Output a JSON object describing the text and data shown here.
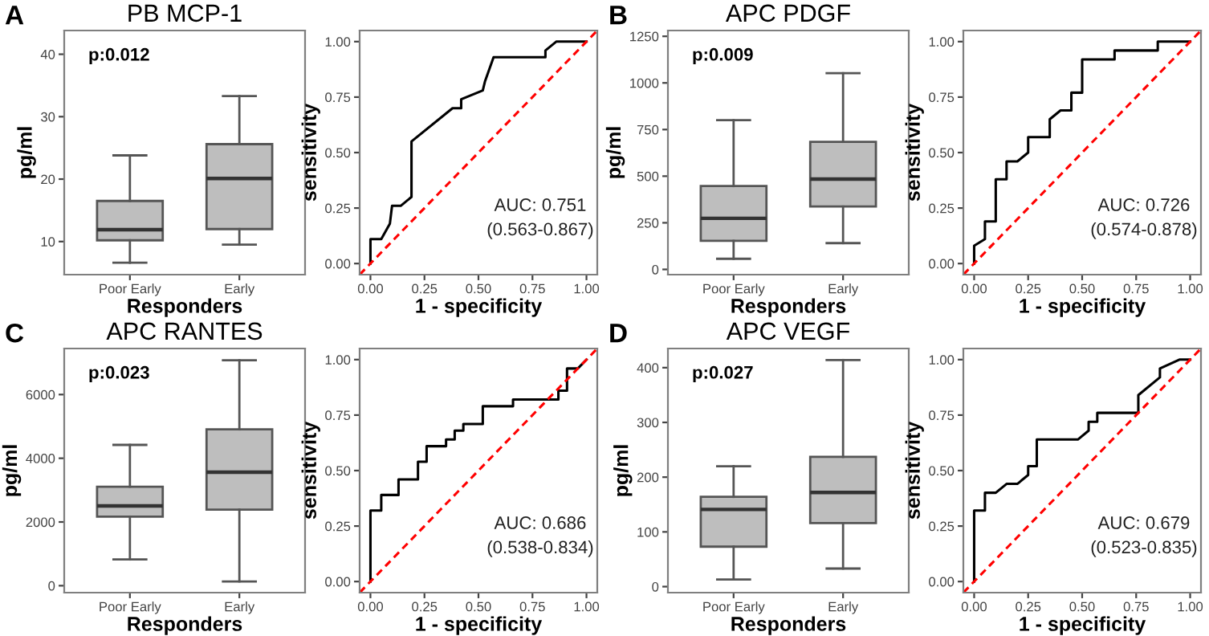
{
  "chart_data": [
    {
      "type": "box",
      "title": "PB MCP-1",
      "xlabel": "Responders",
      "ylabel": "pg/ml",
      "annotations": [
        "A",
        "p:0.012"
      ],
      "categories": [
        "Poor Early",
        "Early"
      ],
      "color": "#bebebe",
      "ylim": [
        4.7,
        43.8
      ],
      "yticks": [
        10,
        20,
        30,
        40
      ],
      "grid": false,
      "boxes": [
        {
          "low": 6.6,
          "q1": 10.2,
          "median": 11.9,
          "q3": 16.5,
          "high": 23.8
        },
        {
          "low": 9.5,
          "q1": 12.0,
          "median": 20.1,
          "q3": 25.6,
          "high": 33.3
        }
      ]
    },
    {
      "type": "line",
      "xlabel": "1 - specificity",
      "ylabel": "sensitivity",
      "annotations": [
        "AUC: 0.751",
        "(0.563-0.867)"
      ],
      "xlim": [
        -0.05,
        1.05
      ],
      "ylim": [
        -0.05,
        1.05
      ],
      "xticks": [
        {
          "value": 0,
          "label": "0.00"
        },
        {
          "value": 0.25,
          "label": "0.25"
        },
        {
          "value": 0.5,
          "label": "0.50"
        },
        {
          "value": 0.75,
          "label": "0.75"
        },
        {
          "value": 1,
          "label": "1.00"
        }
      ],
      "yticks": [
        {
          "value": 0,
          "label": "0.00"
        },
        {
          "value": 0.25,
          "label": "0.25"
        },
        {
          "value": 0.5,
          "label": "0.50"
        },
        {
          "value": 0.75,
          "label": "0.75"
        },
        {
          "value": 1,
          "label": "1.00"
        }
      ],
      "grid": false,
      "series": [
        {
          "color": "#000000",
          "line_style": "solid",
          "x": [
            0,
            0,
            0.05,
            0.09,
            0.1,
            0.14,
            0.19,
            0.19,
            0.38,
            0.42,
            0.42,
            0.52,
            0.53,
            0.57,
            0.81,
            0.81,
            0.86,
            1.0
          ],
          "values": [
            0,
            0.11,
            0.11,
            0.18,
            0.26,
            0.26,
            0.3,
            0.55,
            0.7,
            0.7,
            0.74,
            0.78,
            0.82,
            0.93,
            0.93,
            0.96,
            1.0,
            1.0
          ]
        },
        {
          "color": "#ff0000",
          "line_style": "dashed",
          "x": [
            -0.05,
            1.05
          ],
          "values": [
            -0.05,
            1.05
          ]
        }
      ]
    },
    {
      "type": "box",
      "title": "APC PDGF",
      "xlabel": "Responders",
      "ylabel": "pg/ml",
      "annotations": [
        "B",
        "p:0.009"
      ],
      "categories": [
        "Poor Early",
        "Early"
      ],
      "color": "#bebebe",
      "ylim": [
        -28,
        1281
      ],
      "yticks": [
        0,
        250,
        500,
        750,
        1000,
        1250
      ],
      "grid": false,
      "boxes": [
        {
          "low": 57,
          "q1": 153,
          "median": 274,
          "q3": 447,
          "high": 800
        },
        {
          "low": 141,
          "q1": 337,
          "median": 484,
          "q3": 684,
          "high": 1052
        }
      ]
    },
    {
      "type": "line",
      "xlabel": "1 - specificity",
      "ylabel": "sensitivity",
      "annotations": [
        "AUC: 0.726",
        "(0.574-0.878)"
      ],
      "xlim": [
        -0.05,
        1.05
      ],
      "ylim": [
        -0.05,
        1.05
      ],
      "xticks": [
        {
          "value": 0,
          "label": "0.00"
        },
        {
          "value": 0.25,
          "label": "0.25"
        },
        {
          "value": 0.5,
          "label": "0.50"
        },
        {
          "value": 0.75,
          "label": "0.75"
        },
        {
          "value": 1,
          "label": "1.00"
        }
      ],
      "yticks": [
        {
          "value": 0,
          "label": "0.00"
        },
        {
          "value": 0.25,
          "label": "0.25"
        },
        {
          "value": 0.5,
          "label": "0.50"
        },
        {
          "value": 0.75,
          "label": "0.75"
        },
        {
          "value": 1,
          "label": "1.00"
        }
      ],
      "grid": false,
      "series": [
        {
          "color": "#000000",
          "line_style": "solid",
          "x": [
            0,
            0,
            0.05,
            0.05,
            0.1,
            0.1,
            0.15,
            0.15,
            0.2,
            0.25,
            0.25,
            0.35,
            0.35,
            0.4,
            0.45,
            0.45,
            0.5,
            0.5,
            0.65,
            0.65,
            0.85,
            0.85,
            1.0
          ],
          "values": [
            0,
            0.08,
            0.11,
            0.19,
            0.19,
            0.38,
            0.38,
            0.46,
            0.46,
            0.5,
            0.57,
            0.57,
            0.65,
            0.69,
            0.69,
            0.77,
            0.77,
            0.92,
            0.92,
            0.96,
            0.96,
            1.0,
            1.0
          ]
        },
        {
          "color": "#ff0000",
          "line_style": "dashed",
          "x": [
            -0.05,
            1.05
          ],
          "values": [
            -0.05,
            1.05
          ]
        }
      ]
    },
    {
      "type": "box",
      "title": "APC RANTES",
      "xlabel": "Responders",
      "ylabel": "pg/ml",
      "annotations": [
        "C",
        "p:0.023"
      ],
      "categories": [
        "Poor Early",
        "Early"
      ],
      "color": "#bebebe",
      "ylim": [
        -218,
        7445
      ],
      "yticks": [
        0,
        2000,
        4000,
        6000
      ],
      "grid": false,
      "boxes": [
        {
          "low": 824,
          "q1": 2168,
          "median": 2504,
          "q3": 3109,
          "high": 4420
        },
        {
          "low": 134,
          "q1": 2387,
          "median": 3563,
          "q3": 4907,
          "high": 7076
        }
      ]
    },
    {
      "type": "line",
      "xlabel": "1 - specificity",
      "ylabel": "sensitivity",
      "annotations": [
        "AUC: 0.686",
        "(0.538-0.834)"
      ],
      "xlim": [
        -0.05,
        1.05
      ],
      "ylim": [
        -0.05,
        1.05
      ],
      "xticks": [
        {
          "value": 0,
          "label": "0.00"
        },
        {
          "value": 0.25,
          "label": "0.25"
        },
        {
          "value": 0.5,
          "label": "0.50"
        },
        {
          "value": 0.75,
          "label": "0.75"
        },
        {
          "value": 1,
          "label": "1.00"
        }
      ],
      "yticks": [
        {
          "value": 0,
          "label": "0.00"
        },
        {
          "value": 0.25,
          "label": "0.25"
        },
        {
          "value": 0.5,
          "label": "0.50"
        },
        {
          "value": 0.75,
          "label": "0.75"
        },
        {
          "value": 1,
          "label": "1.00"
        }
      ],
      "grid": false,
      "series": [
        {
          "color": "#000000",
          "line_style": "solid",
          "x": [
            0,
            0,
            0.05,
            0.05,
            0.13,
            0.13,
            0.22,
            0.22,
            0.26,
            0.26,
            0.35,
            0.35,
            0.39,
            0.39,
            0.43,
            0.43,
            0.52,
            0.52,
            0.66,
            0.66,
            0.87,
            0.87,
            0.91,
            0.91,
            0.96,
            1.0
          ],
          "values": [
            0,
            0.32,
            0.32,
            0.39,
            0.39,
            0.46,
            0.46,
            0.54,
            0.54,
            0.61,
            0.61,
            0.64,
            0.64,
            0.68,
            0.68,
            0.71,
            0.71,
            0.79,
            0.79,
            0.82,
            0.82,
            0.86,
            0.86,
            0.96,
            0.96,
            1.0
          ]
        },
        {
          "color": "#ff0000",
          "line_style": "dashed",
          "x": [
            -0.05,
            1.05
          ],
          "values": [
            -0.05,
            1.05
          ]
        }
      ]
    },
    {
      "type": "box",
      "title": "APC VEGF",
      "xlabel": "Responders",
      "ylabel": "pg/ml",
      "annotations": [
        "D",
        "p:0.027"
      ],
      "categories": [
        "Poor Early",
        "Early"
      ],
      "color": "#bebebe",
      "ylim": [
        -11,
        435
      ],
      "yticks": [
        0,
        100,
        200,
        300,
        400
      ],
      "grid": false,
      "boxes": [
        {
          "low": 13,
          "q1": 73,
          "median": 141,
          "q3": 164,
          "high": 220
        },
        {
          "low": 33,
          "q1": 116,
          "median": 172,
          "q3": 237,
          "high": 414
        }
      ]
    },
    {
      "type": "line",
      "xlabel": "1 - specificity",
      "ylabel": "sensitivity",
      "annotations": [
        "AUC: 0.679",
        "(0.523-0.835)"
      ],
      "xlim": [
        -0.05,
        1.05
      ],
      "ylim": [
        -0.05,
        1.05
      ],
      "xticks": [
        {
          "value": 0,
          "label": "0.00"
        },
        {
          "value": 0.25,
          "label": "0.25"
        },
        {
          "value": 0.5,
          "label": "0.50"
        },
        {
          "value": 0.75,
          "label": "0.75"
        },
        {
          "value": 1,
          "label": "1.00"
        }
      ],
      "yticks": [
        {
          "value": 0,
          "label": "0.00"
        },
        {
          "value": 0.25,
          "label": "0.25"
        },
        {
          "value": 0.5,
          "label": "0.50"
        },
        {
          "value": 0.75,
          "label": "0.75"
        },
        {
          "value": 1,
          "label": "1.00"
        }
      ],
      "grid": false,
      "series": [
        {
          "color": "#000000",
          "line_style": "solid",
          "x": [
            0,
            0,
            0.05,
            0.05,
            0.1,
            0.15,
            0.2,
            0.25,
            0.25,
            0.29,
            0.29,
            0.48,
            0.53,
            0.53,
            0.57,
            0.57,
            0.76,
            0.76,
            0.86,
            0.86,
            0.95,
            1.0
          ],
          "values": [
            0,
            0.32,
            0.32,
            0.4,
            0.4,
            0.44,
            0.44,
            0.48,
            0.52,
            0.52,
            0.64,
            0.64,
            0.68,
            0.72,
            0.72,
            0.76,
            0.76,
            0.84,
            0.92,
            0.96,
            1.0,
            1.0
          ]
        },
        {
          "color": "#ff0000",
          "line_style": "dashed",
          "x": [
            -0.05,
            1.05
          ],
          "values": [
            -0.05,
            1.05
          ]
        }
      ]
    }
  ]
}
